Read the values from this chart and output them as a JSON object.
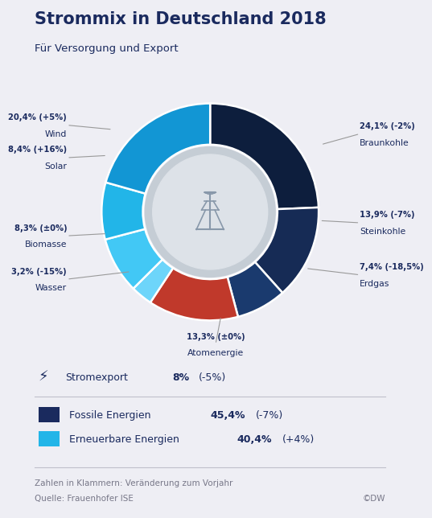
{
  "title": "Strommix in Deutschland 2018",
  "subtitle": "Für Versorgung und Export",
  "background_color": "#eeeef4",
  "title_color": "#1a2a5e",
  "segments_cw": [
    {
      "label": "Braunkohle",
      "pct": "24,1%",
      "change": "(-2%)",
      "value": 24.1,
      "color": "#0d1e3d"
    },
    {
      "label": "Steinkohle",
      "pct": "13,9%",
      "change": "(-7%)",
      "value": 13.9,
      "color": "#162b55"
    },
    {
      "label": "Erdgas",
      "pct": "7,4%",
      "change": "(-18,5%)",
      "value": 7.4,
      "color": "#1a3a6e"
    },
    {
      "label": "Atomenergie",
      "pct": "13,3%",
      "change": "(±0%)",
      "value": 13.3,
      "color": "#c0392b"
    },
    {
      "label": "Wasser",
      "pct": "3,2%",
      "change": "(-15%)",
      "value": 3.2,
      "color": "#6dd5fa"
    },
    {
      "label": "Biomasse",
      "pct": "8,3%",
      "change": "(±0%)",
      "value": 8.3,
      "color": "#42c8f5"
    },
    {
      "label": "Solar",
      "pct": "8,4%",
      "change": "(+16%)",
      "value": 8.4,
      "color": "#22b5e8"
    },
    {
      "label": "Wind",
      "pct": "20,4%",
      "change": "(+5%)",
      "value": 20.4,
      "color": "#1296d4"
    }
  ],
  "inner_ring_color": "#c5cdd5",
  "center_color": "#dde2e8",
  "fossil_color": "#1a2a5e",
  "renewable_color": "#22b5e8",
  "footer_note": "Zahlen in Klammern: Veränderung zum Vorjahr",
  "footer_source": "Quelle: Frauenhofer ISE",
  "footer_dw": "©DW"
}
